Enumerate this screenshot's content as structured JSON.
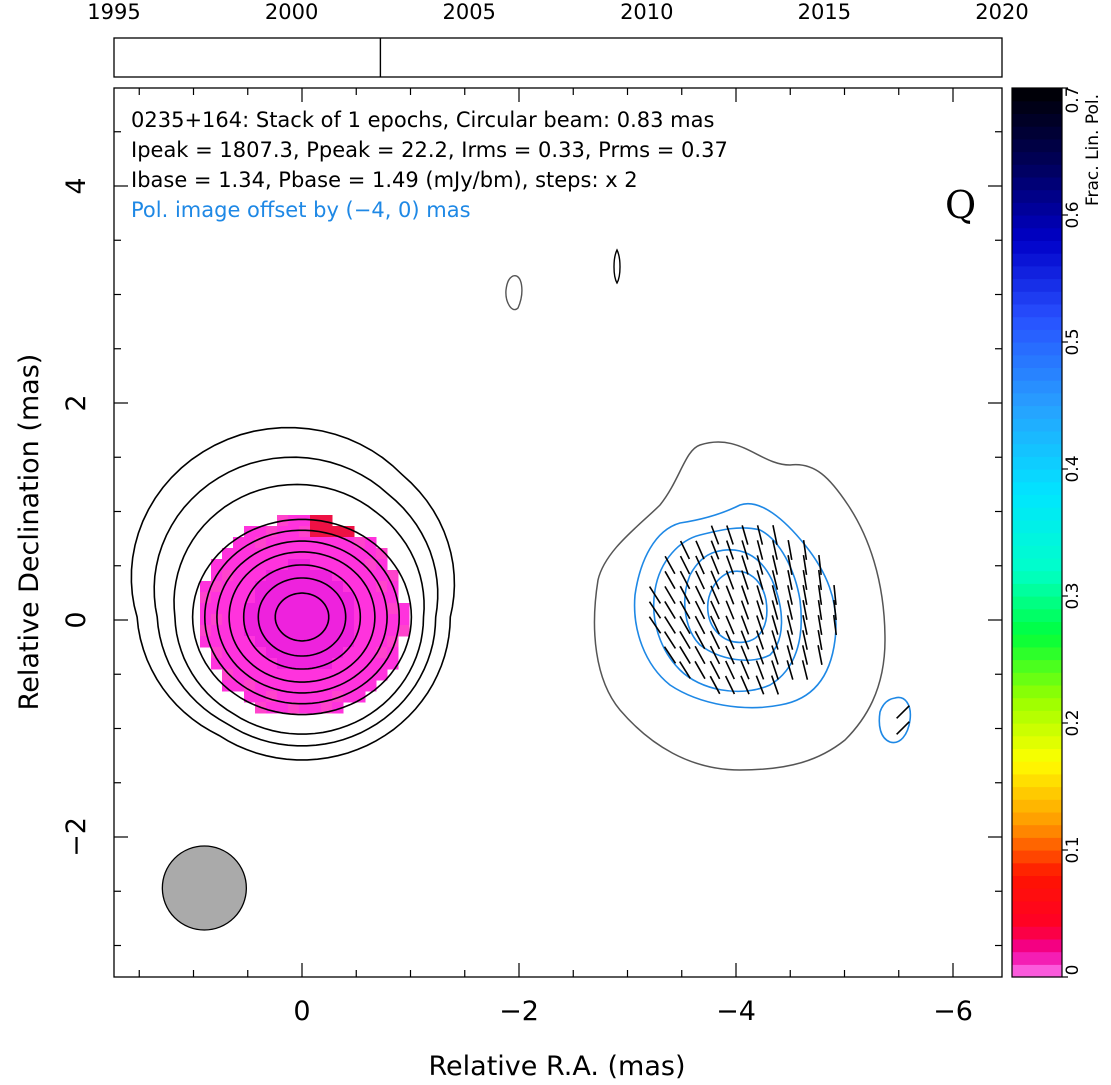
{
  "chart_data": {
    "type": "contour_map",
    "title_lines": [
      "0235+164: Stack of 1 epochs, Circular beam: 0.83 mas",
      "Ipeak = 1807.3, Ppeak = 22.2, Irms = 0.33, Prms = 0.37",
      "Ibase = 1.34, Pbase = 1.49 (mJy/bm), steps: x 2"
    ],
    "pol_offset_note": "Pol. image offset by (−4, 0) mas",
    "quality_letter": "Q",
    "xlabel": "Relative R.A. (mas)",
    "ylabel": "Relative Declination (mas)",
    "xlim": [
      1.75,
      -6.4
    ],
    "ylim": [
      -3.3,
      4.9
    ],
    "x_ticks": [
      0,
      -2,
      -4,
      -6
    ],
    "x_tick_labels": [
      "0",
      "−2",
      "−4",
      "−6"
    ],
    "y_ticks": [
      -2,
      0,
      2,
      4
    ],
    "y_tick_labels": [
      "−2",
      "0",
      "2",
      "4"
    ],
    "timeline": {
      "years": [
        1995,
        2000,
        2005,
        2010,
        2015,
        2020
      ],
      "year_labels": [
        "1995",
        "2000",
        "2005",
        "2010",
        "2015",
        "2020"
      ],
      "epochs": [
        2002.5
      ]
    },
    "colorbar": {
      "label": "Frac. Lin. Pol.",
      "range": [
        0,
        0.7
      ],
      "ticks": [
        0,
        0.1,
        0.2,
        0.3,
        0.4,
        0.5,
        0.6,
        0.7
      ],
      "tick_labels": [
        "0",
        "0.1",
        "0.2",
        "0.3",
        "0.4",
        "0.5",
        "0.6",
        "0.7"
      ]
    },
    "beam": {
      "x": 0.9,
      "y": -2.47,
      "diameter_mas": 0.83
    },
    "stokes_i_contours_radii_mas": [
      0.22,
      0.36,
      0.48,
      0.6,
      0.7,
      0.8,
      0.9,
      1.0,
      1.1,
      1.22
    ],
    "colors": {
      "stokes_i": "#000000",
      "pol_outer": "#555555",
      "pol_contour": "#1e88e5",
      "beam": "#aaaaaa",
      "fracpol": "#ff33dd"
    }
  }
}
